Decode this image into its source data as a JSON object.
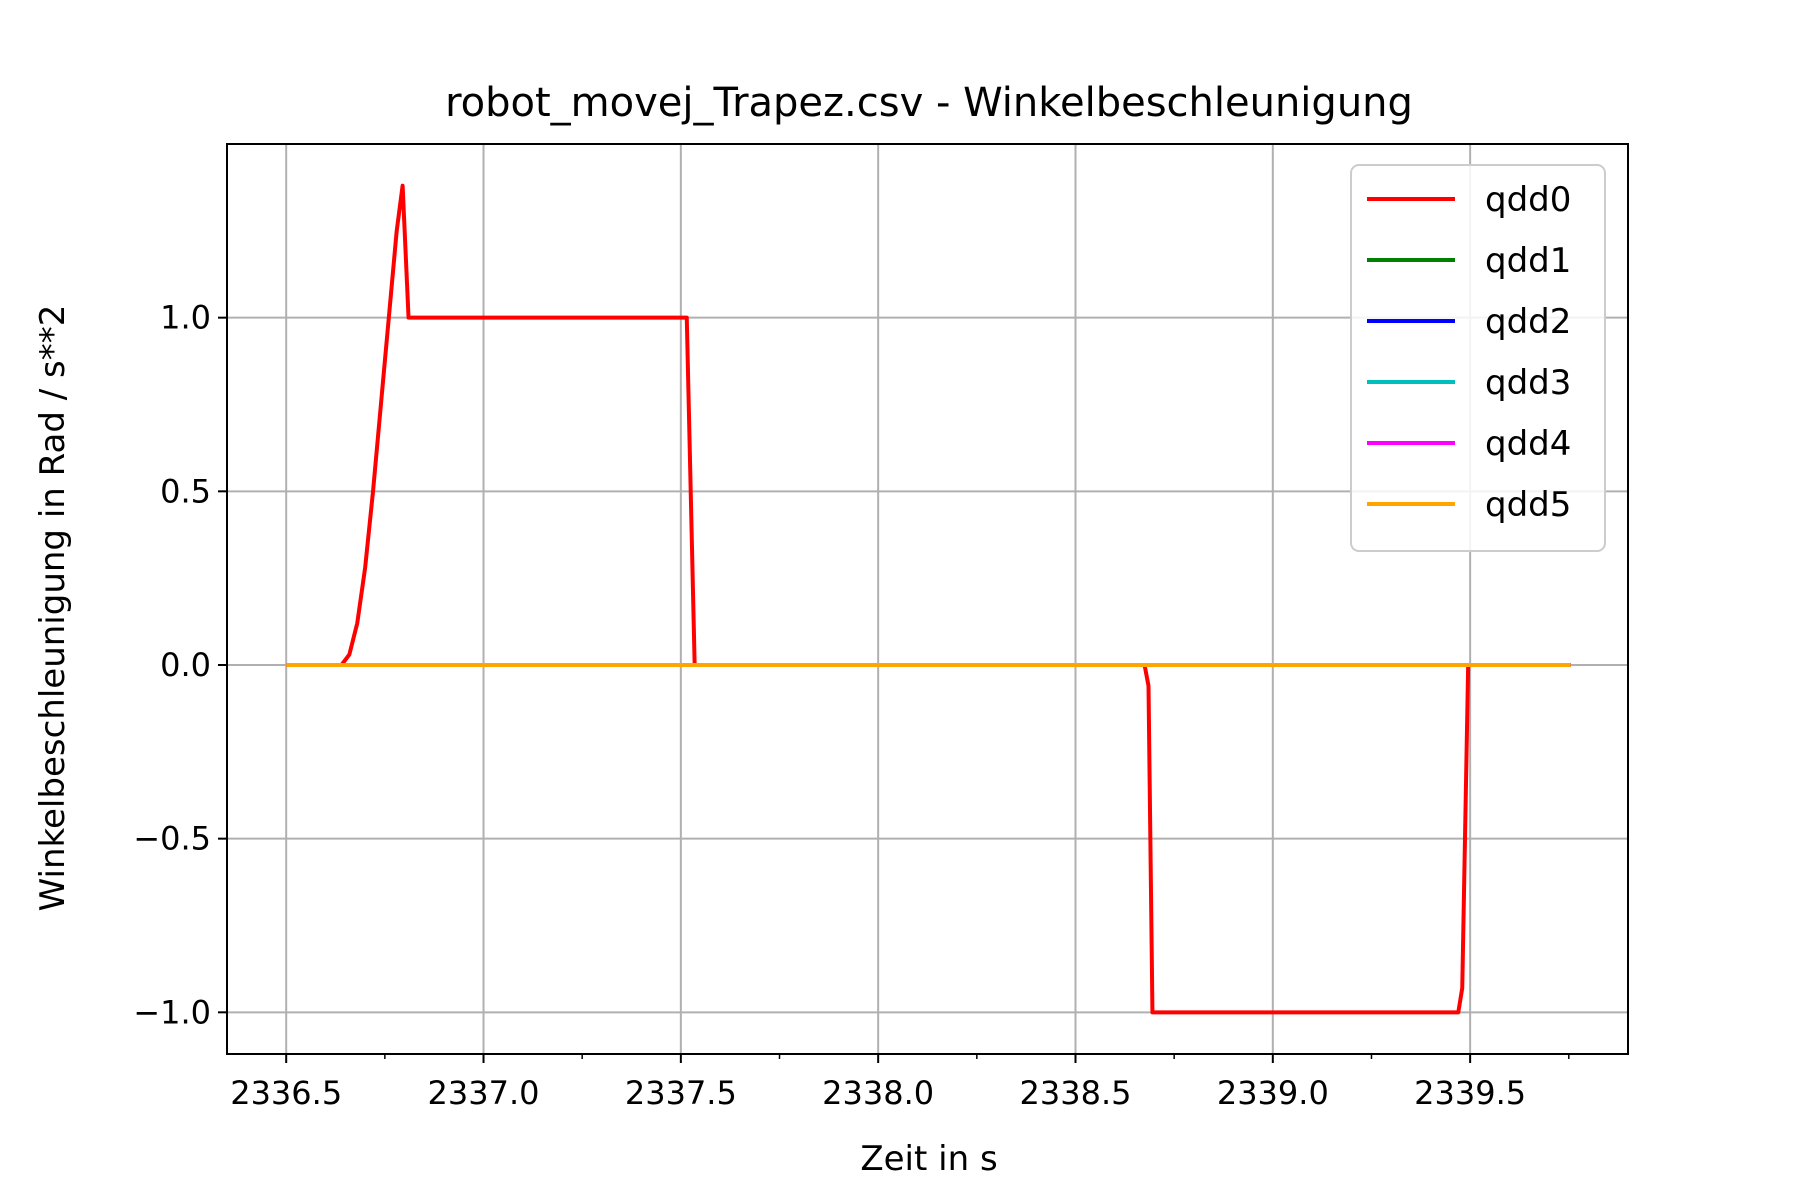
{
  "chart_data": {
    "type": "line",
    "title": "robot_movej_Trapez.csv - Winkelbeschleunigung",
    "xlabel": "Zeit in s",
    "ylabel": "Winkelbeschleunigung in Rad / s**2",
    "xlim": [
      2336.35,
      2339.9
    ],
    "ylim": [
      -1.12,
      1.5
    ],
    "xticks": [
      2336.5,
      2337.0,
      2337.5,
      2338.0,
      2338.5,
      2339.0,
      2339.5
    ],
    "xtick_labels": [
      "2336.5",
      "2337.0",
      "2337.5",
      "2338.0",
      "2338.5",
      "2339.0",
      "2339.5"
    ],
    "yticks": [
      -1.0,
      -0.5,
      0.0,
      0.5,
      1.0
    ],
    "ytick_labels": [
      "−1.0",
      "−0.5",
      "0.0",
      "0.5",
      "1.0"
    ],
    "grid": true,
    "legend_position": "top-right",
    "series": [
      {
        "name": "qdd0",
        "color": "#ff0000",
        "x": [
          2336.5,
          2336.64,
          2336.66,
          2336.68,
          2336.7,
          2336.72,
          2336.74,
          2336.76,
          2336.78,
          2336.795,
          2336.81,
          2337.0,
          2337.5,
          2337.515,
          2337.535,
          2338.0,
          2338.5,
          2338.675,
          2338.685,
          2338.695,
          2339.0,
          2339.47,
          2339.48,
          2339.495,
          2339.755
        ],
        "y": [
          0.0,
          0.0,
          0.03,
          0.12,
          0.28,
          0.5,
          0.75,
          1.0,
          1.25,
          1.38,
          1.0,
          1.0,
          1.0,
          1.0,
          0.0,
          0.0,
          0.0,
          0.0,
          -0.06,
          -1.0,
          -1.0,
          -1.0,
          -0.93,
          0.0,
          0.0
        ]
      },
      {
        "name": "qdd1",
        "color": "#008000",
        "x": [
          2336.5,
          2339.755
        ],
        "y": [
          0.0,
          0.0
        ]
      },
      {
        "name": "qdd2",
        "color": "#0000ff",
        "x": [
          2336.5,
          2339.755
        ],
        "y": [
          0.0,
          0.0
        ]
      },
      {
        "name": "qdd3",
        "color": "#00bfbf",
        "x": [
          2336.5,
          2339.755
        ],
        "y": [
          0.0,
          0.0
        ]
      },
      {
        "name": "qdd4",
        "color": "#ff00ff",
        "x": [
          2336.5,
          2339.755
        ],
        "y": [
          0.0,
          0.0
        ]
      },
      {
        "name": "qdd5",
        "color": "#ffa500",
        "x": [
          2336.5,
          2339.755
        ],
        "y": [
          0.0,
          0.0
        ]
      }
    ]
  }
}
